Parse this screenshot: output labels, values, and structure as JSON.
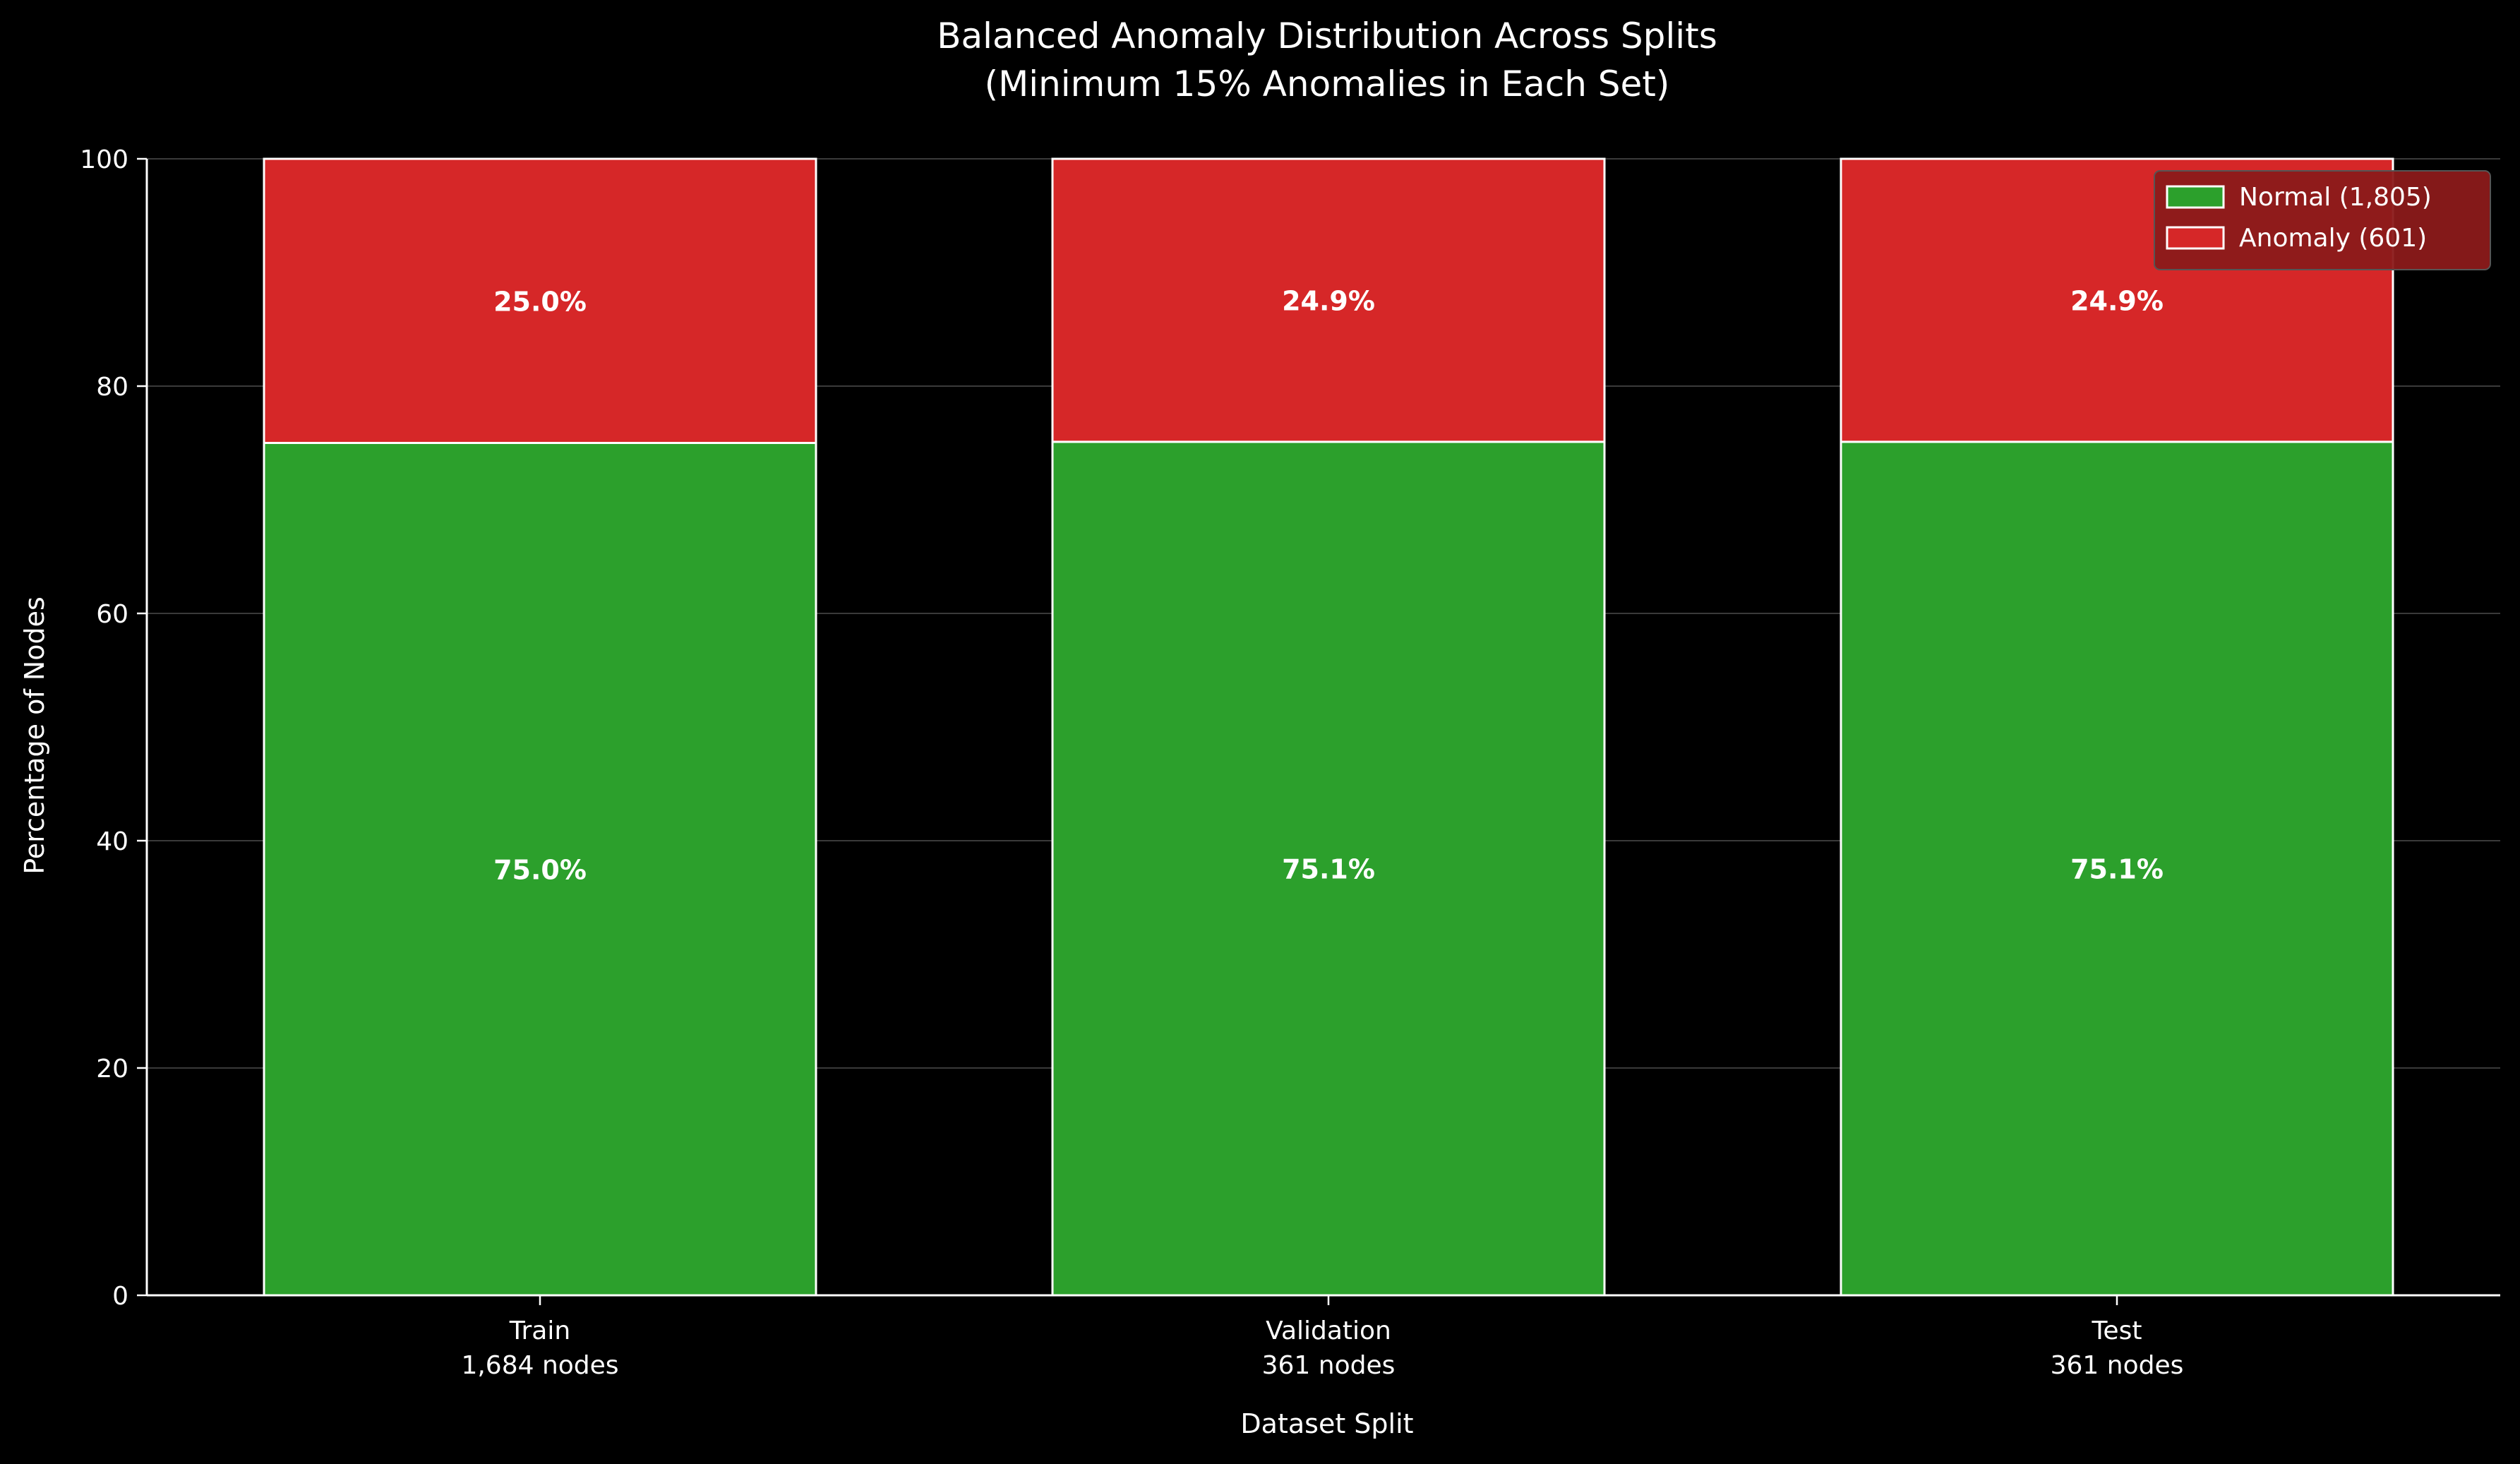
{
  "chart_data": {
    "type": "bar",
    "stacked": true,
    "title": "Balanced Anomaly Distribution Across Splits",
    "subtitle": "(Minimum 15% Anomalies in Each Set)",
    "xlabel": "Dataset Split",
    "ylabel": "Percentage of Nodes",
    "ylim": [
      0,
      100
    ],
    "yticks": [
      "0",
      "20",
      "40",
      "60",
      "80",
      "100"
    ],
    "grid": "horizontal",
    "legend_position": "top-right",
    "categories": [
      "Train",
      "Validation",
      "Test"
    ],
    "category_sublabels": [
      "1,684 nodes",
      "361 nodes",
      "361 nodes"
    ],
    "series": [
      {
        "name": "Normal (1,805)",
        "color": "#2ca02c",
        "values": [
          75.0,
          75.1,
          75.1
        ],
        "labels": [
          "75.0%",
          "75.1%",
          "75.1%"
        ]
      },
      {
        "name": "Anomaly (601)",
        "color": "#d62728",
        "values": [
          25.0,
          24.9,
          24.9
        ],
        "labels": [
          "25.0%",
          "24.9%",
          "24.9%"
        ]
      }
    ],
    "colors": {
      "background": "#000000",
      "foreground": "#ffffff",
      "grid": "#3a3a3a",
      "legend_background": "#8b1a1a"
    }
  }
}
